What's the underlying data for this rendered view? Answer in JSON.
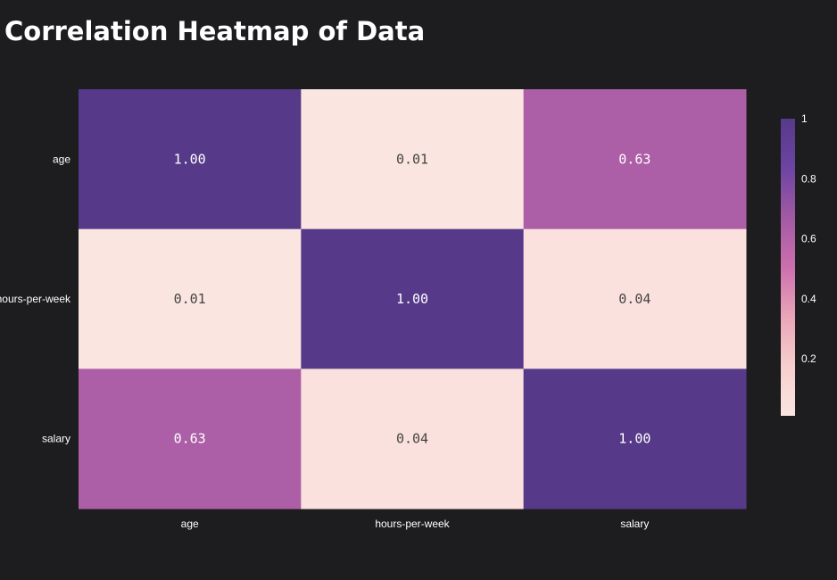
{
  "chart_data": {
    "type": "heatmap",
    "title": "Correlation Heatmap of Data",
    "x_categories": [
      "age",
      "hours-per-week",
      "salary"
    ],
    "y_categories": [
      "age",
      "hours-per-week",
      "salary"
    ],
    "values": [
      [
        1.0,
        0.01,
        0.63
      ],
      [
        0.01,
        1.0,
        0.04
      ],
      [
        0.63,
        0.04,
        1.0
      ]
    ],
    "cell_labels": [
      [
        "1.00",
        "0.01",
        "0.63"
      ],
      [
        "0.01",
        "1.00",
        "0.04"
      ],
      [
        "0.63",
        "0.04",
        "1.00"
      ]
    ],
    "colorbar": {
      "range": [
        0.01,
        1
      ],
      "ticks": [
        0.2,
        0.4,
        0.6,
        0.8,
        1
      ],
      "tick_labels": [
        "0.2",
        "0.4",
        "0.6",
        "0.8",
        "1"
      ],
      "colorscale": [
        "#fbe5e0",
        "#f6cfcd",
        "#e9a5b8",
        "#cd6fae",
        "#a25aa4",
        "#6d44a3",
        "#563a89"
      ]
    },
    "grid": false,
    "legend": "colorbar-right"
  }
}
